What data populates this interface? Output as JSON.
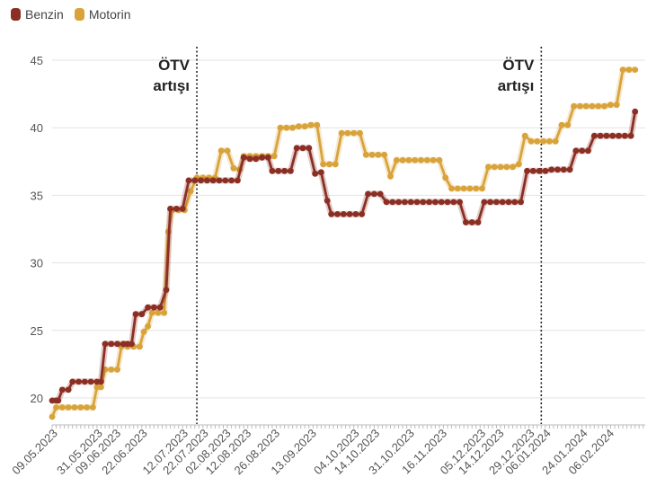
{
  "legend": {
    "benzin": {
      "label": "Benzin",
      "color": "#8b2f24"
    },
    "motorin": {
      "label": "Motorin",
      "color": "#d9a33b"
    }
  },
  "annotations": [
    {
      "date": "2023-07-16",
      "line1": "ÖTV",
      "line2": "artışı"
    },
    {
      "date": "2024-01-01",
      "line1": "ÖTV",
      "line2": "artışı"
    }
  ],
  "chart_data": {
    "type": "line",
    "title": "",
    "xlabel": "",
    "ylabel": "",
    "ylim": [
      18,
      46
    ],
    "xlim": [
      "2023-05-06",
      "2024-02-21"
    ],
    "y_ticks": [
      20,
      25,
      30,
      35,
      40,
      45
    ],
    "x_ticks": [
      "09.05.2023",
      "31.05.2023",
      "09.06.2023",
      "22.06.2023",
      "12.07.2023",
      "22.07.2023",
      "02.08.2023",
      "12.08.2023",
      "26.08.2023",
      "13.09.2023",
      "04.10.2023",
      "14.10.2023",
      "31.10.2023",
      "16.11.2023",
      "05.12.2023",
      "14.12.2023",
      "29.12.2023",
      "06.01.2024",
      "24.01.2024",
      "06.02.2024"
    ],
    "grid": "horizontal",
    "legend_position": "top-left",
    "series": [
      {
        "name": "Benzin",
        "color": "#8b2f24",
        "points": [
          [
            "2023-05-06",
            19.8
          ],
          [
            "2023-05-08",
            19.8
          ],
          [
            "2023-05-09",
            19.8
          ],
          [
            "2023-05-11",
            20.6
          ],
          [
            "2023-05-14",
            20.6
          ],
          [
            "2023-05-16",
            21.2
          ],
          [
            "2023-05-19",
            21.2
          ],
          [
            "2023-05-22",
            21.2
          ],
          [
            "2023-05-25",
            21.2
          ],
          [
            "2023-05-28",
            21.2
          ],
          [
            "2023-05-30",
            21.2
          ],
          [
            "2023-06-01",
            24.0
          ],
          [
            "2023-06-04",
            24.0
          ],
          [
            "2023-06-07",
            24.0
          ],
          [
            "2023-06-10",
            24.0
          ],
          [
            "2023-06-12",
            24.0
          ],
          [
            "2023-06-14",
            24.0
          ],
          [
            "2023-06-16",
            26.2
          ],
          [
            "2023-06-19",
            26.2
          ],
          [
            "2023-06-22",
            26.7
          ],
          [
            "2023-06-25",
            26.7
          ],
          [
            "2023-06-28",
            26.7
          ],
          [
            "2023-07-01",
            28.0
          ],
          [
            "2023-07-03",
            34.0
          ],
          [
            "2023-07-06",
            34.0
          ],
          [
            "2023-07-09",
            34.0
          ],
          [
            "2023-07-12",
            36.1
          ],
          [
            "2023-07-15",
            36.1
          ],
          [
            "2023-07-18",
            36.1
          ],
          [
            "2023-07-21",
            36.1
          ],
          [
            "2023-07-24",
            36.1
          ],
          [
            "2023-07-27",
            36.1
          ],
          [
            "2023-07-30",
            36.1
          ],
          [
            "2023-08-02",
            36.1
          ],
          [
            "2023-08-05",
            36.1
          ],
          [
            "2023-08-08",
            37.8
          ],
          [
            "2023-08-11",
            37.7
          ],
          [
            "2023-08-14",
            37.7
          ],
          [
            "2023-08-17",
            37.8
          ],
          [
            "2023-08-20",
            37.8
          ],
          [
            "2023-08-22",
            36.8
          ],
          [
            "2023-08-25",
            36.8
          ],
          [
            "2023-08-28",
            36.8
          ],
          [
            "2023-08-31",
            36.8
          ],
          [
            "2023-09-03",
            38.5
          ],
          [
            "2023-09-06",
            38.5
          ],
          [
            "2023-09-09",
            38.5
          ],
          [
            "2023-09-12",
            36.6
          ],
          [
            "2023-09-15",
            36.7
          ],
          [
            "2023-09-18",
            34.6
          ],
          [
            "2023-09-20",
            33.6
          ],
          [
            "2023-09-23",
            33.6
          ],
          [
            "2023-09-26",
            33.6
          ],
          [
            "2023-09-29",
            33.6
          ],
          [
            "2023-10-02",
            33.6
          ],
          [
            "2023-10-05",
            33.6
          ],
          [
            "2023-10-08",
            35.1
          ],
          [
            "2023-10-11",
            35.1
          ],
          [
            "2023-10-14",
            35.1
          ],
          [
            "2023-10-17",
            34.5
          ],
          [
            "2023-10-20",
            34.5
          ],
          [
            "2023-10-23",
            34.5
          ],
          [
            "2023-10-26",
            34.5
          ],
          [
            "2023-10-29",
            34.5
          ],
          [
            "2023-11-01",
            34.5
          ],
          [
            "2023-11-04",
            34.5
          ],
          [
            "2023-11-07",
            34.5
          ],
          [
            "2023-11-10",
            34.5
          ],
          [
            "2023-11-13",
            34.5
          ],
          [
            "2023-11-16",
            34.5
          ],
          [
            "2023-11-19",
            34.5
          ],
          [
            "2023-11-22",
            34.5
          ],
          [
            "2023-11-25",
            33.0
          ],
          [
            "2023-11-28",
            33.0
          ],
          [
            "2023-12-01",
            33.0
          ],
          [
            "2023-12-04",
            34.5
          ],
          [
            "2023-12-07",
            34.5
          ],
          [
            "2023-12-10",
            34.5
          ],
          [
            "2023-12-13",
            34.5
          ],
          [
            "2023-12-16",
            34.5
          ],
          [
            "2023-12-19",
            34.5
          ],
          [
            "2023-12-22",
            34.5
          ],
          [
            "2023-12-25",
            36.8
          ],
          [
            "2023-12-28",
            36.8
          ],
          [
            "2023-12-31",
            36.8
          ],
          [
            "2024-01-03",
            36.8
          ],
          [
            "2024-01-06",
            36.9
          ],
          [
            "2024-01-09",
            36.9
          ],
          [
            "2024-01-12",
            36.9
          ],
          [
            "2024-01-15",
            36.9
          ],
          [
            "2024-01-18",
            38.3
          ],
          [
            "2024-01-21",
            38.3
          ],
          [
            "2024-01-24",
            38.3
          ],
          [
            "2024-01-27",
            39.4
          ],
          [
            "2024-01-30",
            39.4
          ],
          [
            "2024-02-02",
            39.4
          ],
          [
            "2024-02-05",
            39.4
          ],
          [
            "2024-02-08",
            39.4
          ],
          [
            "2024-02-11",
            39.4
          ],
          [
            "2024-02-14",
            39.4
          ],
          [
            "2024-02-16",
            41.2
          ]
        ]
      },
      {
        "name": "Motorin",
        "color": "#d9a33b",
        "points": [
          [
            "2023-05-06",
            18.6
          ],
          [
            "2023-05-08",
            19.3
          ],
          [
            "2023-05-11",
            19.3
          ],
          [
            "2023-05-14",
            19.3
          ],
          [
            "2023-05-17",
            19.3
          ],
          [
            "2023-05-20",
            19.3
          ],
          [
            "2023-05-23",
            19.3
          ],
          [
            "2023-05-26",
            19.3
          ],
          [
            "2023-05-28",
            20.8
          ],
          [
            "2023-05-30",
            20.8
          ],
          [
            "2023-06-01",
            22.1
          ],
          [
            "2023-06-04",
            22.1
          ],
          [
            "2023-06-07",
            22.1
          ],
          [
            "2023-06-09",
            23.8
          ],
          [
            "2023-06-12",
            23.8
          ],
          [
            "2023-06-15",
            23.8
          ],
          [
            "2023-06-18",
            23.8
          ],
          [
            "2023-06-20",
            24.9
          ],
          [
            "2023-06-22",
            25.3
          ],
          [
            "2023-06-24",
            26.3
          ],
          [
            "2023-06-27",
            26.3
          ],
          [
            "2023-06-30",
            26.3
          ],
          [
            "2023-07-02",
            32.3
          ],
          [
            "2023-07-04",
            33.9
          ],
          [
            "2023-07-07",
            33.9
          ],
          [
            "2023-07-10",
            33.9
          ],
          [
            "2023-07-13",
            35.3
          ],
          [
            "2023-07-16",
            36.3
          ],
          [
            "2023-07-19",
            36.3
          ],
          [
            "2023-07-22",
            36.3
          ],
          [
            "2023-07-25",
            36.3
          ],
          [
            "2023-07-28",
            38.3
          ],
          [
            "2023-07-31",
            38.3
          ],
          [
            "2023-08-03",
            37.0
          ],
          [
            "2023-08-06",
            36.9
          ],
          [
            "2023-08-08",
            37.9
          ],
          [
            "2023-08-11",
            37.9
          ],
          [
            "2023-08-14",
            37.9
          ],
          [
            "2023-08-17",
            37.9
          ],
          [
            "2023-08-20",
            37.9
          ],
          [
            "2023-08-23",
            37.9
          ],
          [
            "2023-08-26",
            40.0
          ],
          [
            "2023-08-29",
            40.0
          ],
          [
            "2023-09-01",
            40.0
          ],
          [
            "2023-09-04",
            40.1
          ],
          [
            "2023-09-07",
            40.1
          ],
          [
            "2023-09-10",
            40.2
          ],
          [
            "2023-09-13",
            40.2
          ],
          [
            "2023-09-16",
            37.3
          ],
          [
            "2023-09-19",
            37.3
          ],
          [
            "2023-09-22",
            37.3
          ],
          [
            "2023-09-25",
            39.6
          ],
          [
            "2023-09-28",
            39.6
          ],
          [
            "2023-10-01",
            39.6
          ],
          [
            "2023-10-04",
            39.6
          ],
          [
            "2023-10-07",
            38.0
          ],
          [
            "2023-10-10",
            38.0
          ],
          [
            "2023-10-13",
            38.0
          ],
          [
            "2023-10-16",
            38.0
          ],
          [
            "2023-10-19",
            36.4
          ],
          [
            "2023-10-22",
            37.6
          ],
          [
            "2023-10-25",
            37.6
          ],
          [
            "2023-10-28",
            37.6
          ],
          [
            "2023-10-31",
            37.6
          ],
          [
            "2023-11-03",
            37.6
          ],
          [
            "2023-11-06",
            37.6
          ],
          [
            "2023-11-09",
            37.6
          ],
          [
            "2023-11-12",
            37.6
          ],
          [
            "2023-11-15",
            36.3
          ],
          [
            "2023-11-18",
            35.5
          ],
          [
            "2023-11-21",
            35.5
          ],
          [
            "2023-11-24",
            35.5
          ],
          [
            "2023-11-27",
            35.5
          ],
          [
            "2023-11-30",
            35.5
          ],
          [
            "2023-12-03",
            35.5
          ],
          [
            "2023-12-06",
            37.1
          ],
          [
            "2023-12-09",
            37.1
          ],
          [
            "2023-12-12",
            37.1
          ],
          [
            "2023-12-15",
            37.1
          ],
          [
            "2023-12-18",
            37.1
          ],
          [
            "2023-12-21",
            37.3
          ],
          [
            "2023-12-24",
            39.4
          ],
          [
            "2023-12-27",
            39.0
          ],
          [
            "2023-12-30",
            39.0
          ],
          [
            "2024-01-02",
            39.0
          ],
          [
            "2024-01-05",
            39.0
          ],
          [
            "2024-01-08",
            39.0
          ],
          [
            "2024-01-11",
            40.2
          ],
          [
            "2024-01-14",
            40.2
          ],
          [
            "2024-01-17",
            41.6
          ],
          [
            "2024-01-20",
            41.6
          ],
          [
            "2024-01-23",
            41.6
          ],
          [
            "2024-01-26",
            41.6
          ],
          [
            "2024-01-29",
            41.6
          ],
          [
            "2024-02-01",
            41.6
          ],
          [
            "2024-02-04",
            41.7
          ],
          [
            "2024-02-07",
            41.7
          ],
          [
            "2024-02-10",
            44.3
          ],
          [
            "2024-02-13",
            44.3
          ],
          [
            "2024-02-16",
            44.3
          ]
        ]
      }
    ]
  }
}
